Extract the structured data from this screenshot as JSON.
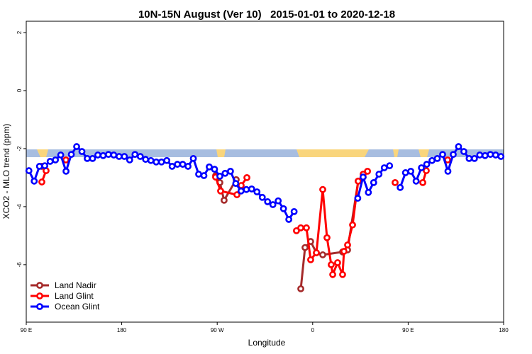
{
  "chart_data": {
    "type": "line",
    "title": "10N-15N August (Ver 10)   2015-01-01 to 2020-12-18",
    "x_label": "Longitude",
    "y_label": "XCO2 - MLO trend (ppm)",
    "xlim": [
      90,
      540
    ],
    "ylim": [
      -7.98,
      2.39
    ],
    "xticks": [
      {
        "value": 90,
        "label": "90 E"
      },
      {
        "value": 180,
        "label": "180"
      },
      {
        "value": 270,
        "label": "90 W"
      },
      {
        "value": 360,
        "label": "0"
      },
      {
        "value": 450,
        "label": "90 E"
      },
      {
        "value": 540,
        "label": "180"
      }
    ],
    "yticks": [
      2,
      0,
      -2,
      -4,
      -6
    ],
    "legend": "bottom-left",
    "series": [
      {
        "name": "Land Nadir",
        "color": "#a52a2a",
        "x": [
          104.7,
          110,
          268.5,
          272.5,
          276.5,
          287.9,
          292,
          348.8,
          352.8,
          358.1,
          363.5,
          369.5,
          388.2,
          392.9,
          402.9,
          407.6
        ],
        "values": [
          -2.61,
          null,
          -2.93,
          -3.17,
          -3.78,
          -3.07,
          null,
          -6.83,
          -5.41,
          -5.2,
          -5.59,
          -5.66,
          -5.56,
          -5.49,
          -3.12,
          -2.98
        ]
      },
      {
        "name": "Land Glint",
        "color": "#ff0000",
        "x": [
          104.7,
          108.7,
          115,
          127.4,
          135,
          268.5,
          273.2,
          288.6,
          292.6,
          298.0,
          320,
          344.7,
          348.8,
          354.1,
          358.1,
          363.5,
          369.5,
          373.5,
          377.5,
          378.9,
          383.5,
          388.2,
          389.5,
          392.9,
          397.6,
          402.9,
          407.6,
          411.7,
          420,
          437.7,
          445,
          463.8,
          467.1,
          475,
          487.2
        ],
        "values": [
          -3.15,
          -2.76,
          null,
          -2.39,
          null,
          -2.98,
          -3.46,
          -3.59,
          -3.27,
          -3.0,
          null,
          -4.83,
          -4.73,
          -4.73,
          -5.83,
          -5.59,
          -3.41,
          -5.07,
          -6.0,
          -6.34,
          -5.93,
          -6.34,
          -5.54,
          -5.32,
          -4.63,
          -3.12,
          -2.88,
          -2.78,
          null,
          -3.17,
          null,
          -3.17,
          -2.76,
          null,
          -2.39
        ]
      },
      {
        "name": "Ocean Glint",
        "color": "#0000ff",
        "x": [
          92.5,
          97.5,
          102.5,
          107.5,
          112.5,
          117.5,
          122.5,
          127.5,
          132.5,
          137.5,
          142.5,
          147.5,
          152.5,
          157.5,
          162.5,
          167.5,
          172.5,
          177.5,
          182.5,
          187.5,
          192.5,
          197.5,
          202.5,
          207.5,
          212.5,
          217.5,
          222.5,
          227.5,
          232.5,
          237.5,
          242.5,
          247.5,
          252.5,
          257.5,
          262.5,
          267.5,
          272.5,
          277.5,
          282.5,
          287.5,
          292.5,
          297.5,
          302.5,
          307.5,
          312.5,
          317.5,
          322.5,
          327.5,
          332.5,
          337.5,
          342.5,
          347.5,
          402.5,
          407.5,
          412.5,
          417.5,
          422.5,
          427.5,
          432.5,
          437.5,
          442.5,
          447.5,
          452.5,
          457.5,
          462.5,
          467.5,
          472.5,
          477.5,
          482.5,
          487.5,
          492.5,
          497.5,
          502.5,
          507.5,
          512.5,
          517.5,
          522.5,
          527.5,
          532.5,
          537.5
        ],
        "values": [
          -2.76,
          -3.12,
          -2.61,
          -2.59,
          -2.44,
          -2.39,
          -2.22,
          -2.78,
          -2.2,
          -1.93,
          -2.1,
          -2.34,
          -2.34,
          -2.22,
          -2.24,
          -2.2,
          -2.22,
          -2.27,
          -2.27,
          -2.39,
          -2.2,
          -2.27,
          -2.37,
          -2.41,
          -2.46,
          -2.46,
          -2.41,
          -2.61,
          -2.54,
          -2.54,
          -2.61,
          -2.34,
          -2.88,
          -2.93,
          -2.63,
          -2.71,
          -2.95,
          -2.85,
          -2.78,
          -3.2,
          -3.46,
          -3.41,
          -3.39,
          -3.49,
          -3.68,
          -3.83,
          -3.93,
          -3.8,
          -4.07,
          -4.44,
          -4.17,
          null,
          -3.71,
          -2.98,
          -3.51,
          -3.17,
          -2.88,
          -2.66,
          -2.59,
          null,
          -3.34,
          -2.83,
          -2.78,
          -3.12,
          -2.66,
          -2.54,
          -2.41,
          -2.34,
          -2.2,
          -2.78,
          -2.2,
          -1.93,
          -2.1,
          -2.34,
          -2.34,
          -2.22,
          -2.24,
          -2.2,
          -2.22,
          -2.27
        ]
      }
    ]
  }
}
